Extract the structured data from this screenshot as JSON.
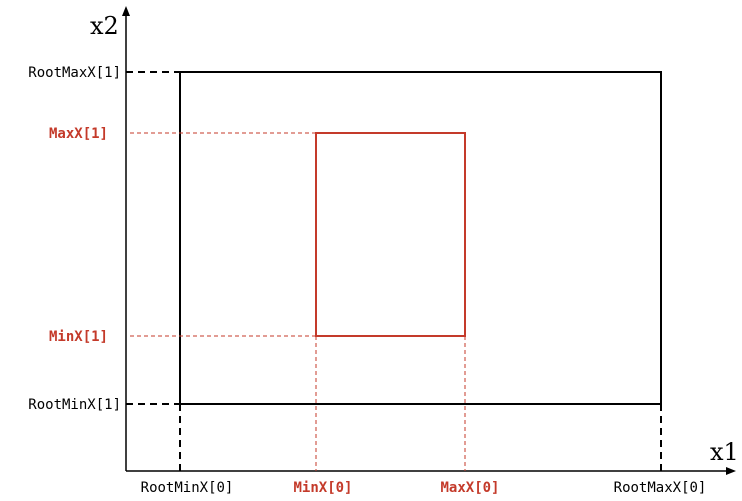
{
  "diagram": {
    "axes": {
      "x_label": "x1",
      "y_label": "x2"
    },
    "root_box": {
      "labels": {
        "min_x0": "RootMinX[0]",
        "max_x0": "RootMaxX[0]",
        "min_x1": "RootMinX[1]",
        "max_x1": "RootMaxX[1]"
      }
    },
    "child_box": {
      "labels": {
        "min_x0": "MinX[0]",
        "max_x0": "MaxX[0]",
        "min_x1": "MinX[1]",
        "max_x1": "MaxX[1]"
      }
    },
    "colors": {
      "root": "#000000",
      "child": "#c43a2a"
    }
  }
}
